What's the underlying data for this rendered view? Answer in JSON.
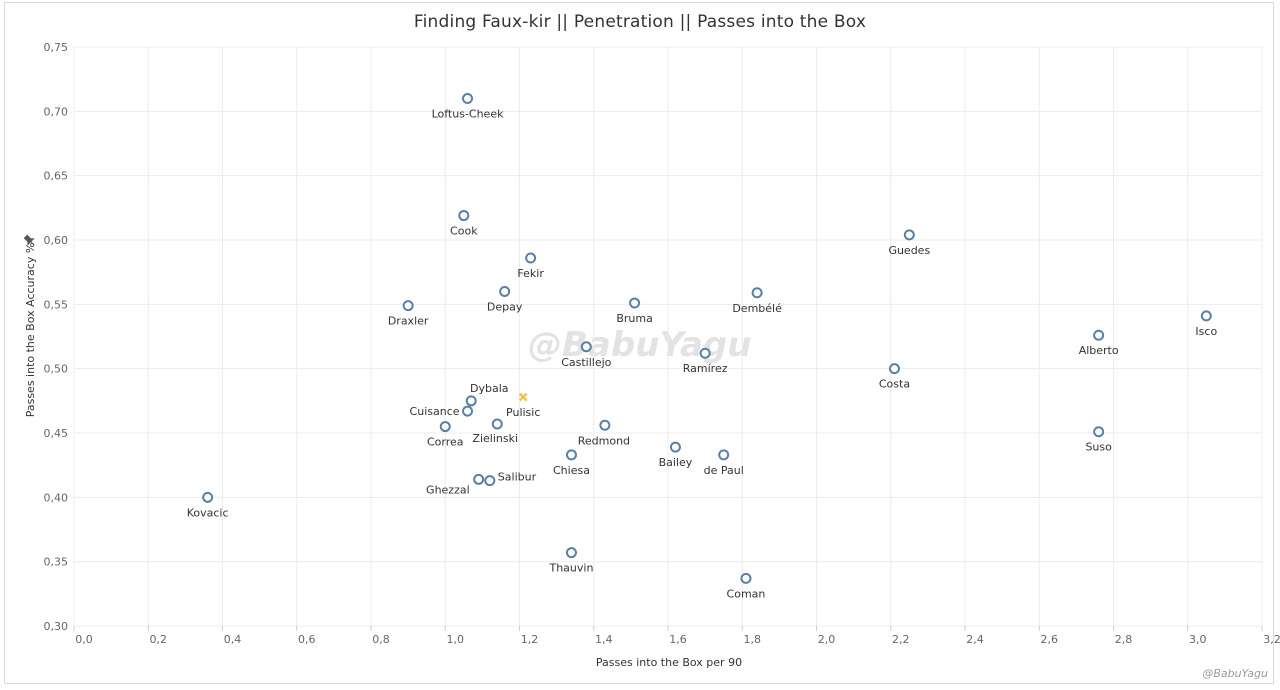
{
  "chart_data": {
    "type": "scatter",
    "title": "Finding Faux-kir  ||  Penetration  ||  Passes into the Box",
    "xlabel": "Passes into the Box per 90",
    "ylabel": "Passes into the Box Accuracy %",
    "xlim": [
      0,
      3.2
    ],
    "ylim": [
      0.3,
      0.75
    ],
    "xticks": [
      "0,0",
      "0,2",
      "0,4",
      "0,6",
      "0,8",
      "1,0",
      "1,2",
      "1,4",
      "1,6",
      "1,8",
      "2,0",
      "2,2",
      "2,4",
      "2,6",
      "2,8",
      "3,0",
      "3,2"
    ],
    "yticks": [
      "0,30",
      "0,35",
      "0,40",
      "0,45",
      "0,50",
      "0,55",
      "0,60",
      "0,65",
      "0,70",
      "0,75"
    ],
    "grid": true,
    "points": [
      {
        "name": "Loftus-Cheek",
        "x": 1.06,
        "y": 0.71
      },
      {
        "name": "Cook",
        "x": 1.05,
        "y": 0.619
      },
      {
        "name": "Guedes",
        "x": 2.25,
        "y": 0.604
      },
      {
        "name": "Fekir",
        "x": 1.23,
        "y": 0.586
      },
      {
        "name": "Depay",
        "x": 1.16,
        "y": 0.56
      },
      {
        "name": "Dembélé",
        "x": 1.84,
        "y": 0.559
      },
      {
        "name": "Bruma",
        "x": 1.51,
        "y": 0.551
      },
      {
        "name": "Draxler",
        "x": 0.9,
        "y": 0.549
      },
      {
        "name": "Isco",
        "x": 3.05,
        "y": 0.541
      },
      {
        "name": "Alberto",
        "x": 2.76,
        "y": 0.526
      },
      {
        "name": "Castillejo",
        "x": 1.38,
        "y": 0.517
      },
      {
        "name": "Ramírez",
        "x": 1.7,
        "y": 0.512
      },
      {
        "name": "Costa",
        "x": 2.21,
        "y": 0.5
      },
      {
        "name": "Dybala",
        "x": 1.07,
        "y": 0.475
      },
      {
        "name": "Cuisance",
        "x": 1.06,
        "y": 0.467
      },
      {
        "name": "Zielinski",
        "x": 1.14,
        "y": 0.457
      },
      {
        "name": "Redmond",
        "x": 1.43,
        "y": 0.456
      },
      {
        "name": "Correa",
        "x": 1.0,
        "y": 0.455
      },
      {
        "name": "Suso",
        "x": 2.76,
        "y": 0.451
      },
      {
        "name": "Bailey",
        "x": 1.62,
        "y": 0.439
      },
      {
        "name": "Chiesa",
        "x": 1.34,
        "y": 0.433
      },
      {
        "name": "de Paul",
        "x": 1.75,
        "y": 0.433
      },
      {
        "name": "Ghezzal",
        "x": 1.09,
        "y": 0.414
      },
      {
        "name": "Salibur",
        "x": 1.12,
        "y": 0.413
      },
      {
        "name": "Kovacic",
        "x": 0.36,
        "y": 0.4
      },
      {
        "name": "Thauvin",
        "x": 1.34,
        "y": 0.357
      },
      {
        "name": "Coman",
        "x": 1.81,
        "y": 0.337
      }
    ],
    "highlight": {
      "name": "Pulisic",
      "x": 1.21,
      "y": 0.478
    },
    "colors": {
      "point": "#5b7fa6",
      "highlight": "#f2c14e",
      "grid": "#ececec"
    },
    "watermark": "@BabuYagu",
    "credit": "@BabuYagu"
  }
}
